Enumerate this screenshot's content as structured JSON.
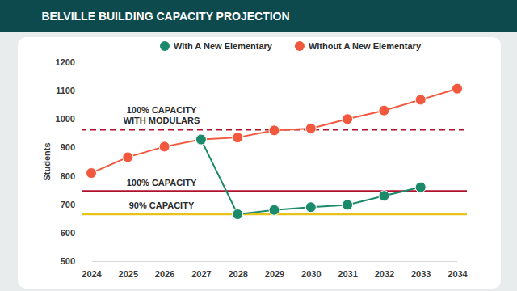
{
  "chart_data": {
    "type": "line",
    "title": "BELVILLE BUILDING CAPACITY PROJECTION",
    "y_label": "Students",
    "categories": [
      "2024",
      "2025",
      "2026",
      "2027",
      "2028",
      "2029",
      "2030",
      "2031",
      "2032",
      "2033",
      "2034"
    ],
    "series": [
      {
        "name": "With A New Elementary",
        "color": "#1b8a6b",
        "marker": "circle",
        "values": [
          null,
          null,
          null,
          928,
          665,
          680,
          690,
          698,
          730,
          760,
          null
        ]
      },
      {
        "name": "Without A New Elementary",
        "color": "#f2583e",
        "marker": "circle",
        "values": [
          810,
          866,
          903,
          928,
          935,
          960,
          967,
          1000,
          1030,
          1068,
          1107
        ]
      }
    ],
    "annotations": [
      {
        "text": [
          "100% CAPACITY",
          "WITH MODULARS"
        ],
        "y": 963,
        "color": "#b0122e",
        "line_style": "dashed"
      },
      {
        "text": [
          "100% CAPACITY"
        ],
        "y": 746,
        "color": "#b0122e",
        "line_style": "solid"
      },
      {
        "text": [
          "90% CAPACITY"
        ],
        "y": 665,
        "color": "#e8c21a",
        "line_style": "solid"
      }
    ],
    "ylim": [
      500,
      1200
    ],
    "yticks": [
      500,
      600,
      700,
      800,
      900,
      1000,
      1100,
      1200
    ],
    "legend": "top",
    "grid": false
  }
}
